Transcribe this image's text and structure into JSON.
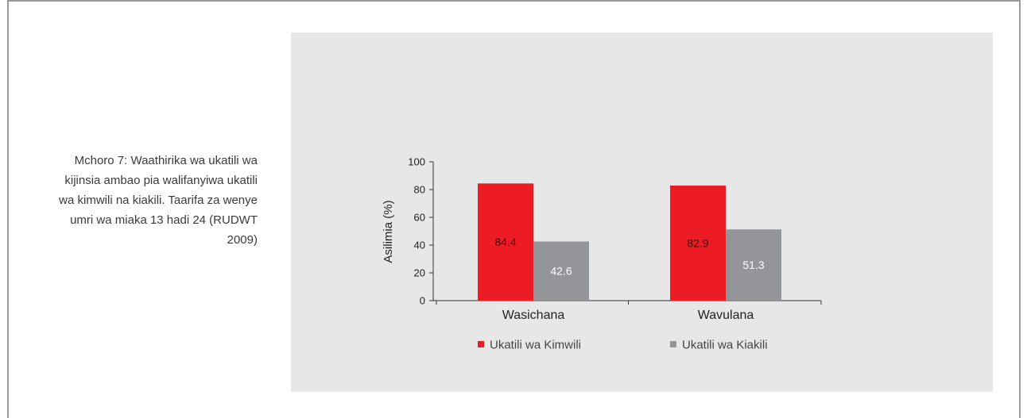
{
  "caption": "Mchoro 7: Waathirika wa ukatili wa kijinsia ambao pia walifanyiwa ukatili wa kimwili na kiakili. Taarifa za wenye umri wa miaka 13 hadi 24 (RUDWT 2009)",
  "chart_data": {
    "type": "bar",
    "categories": [
      "Wasichana",
      "Wavulana"
    ],
    "series": [
      {
        "name": "Ukatili wa Kimwili",
        "values": [
          84.4,
          82.9
        ],
        "color": "#ed1c24"
      },
      {
        "name": "Ukatili wa Kiakili",
        "values": [
          42.6,
          51.3
        ],
        "color": "#939598"
      }
    ],
    "ylabel": "Asilimia (%)",
    "xlabel": "",
    "ylim": [
      0,
      100
    ],
    "yticks": [
      0,
      20,
      40,
      60,
      80,
      100
    ],
    "legend": "bottom",
    "grid": false
  }
}
